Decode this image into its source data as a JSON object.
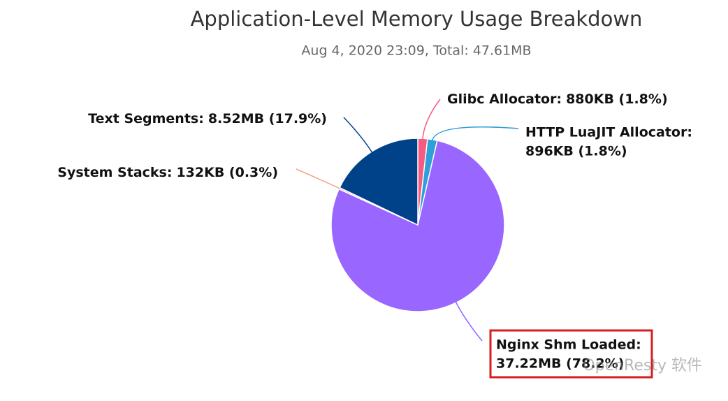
{
  "chart_data": {
    "type": "pie",
    "title": "Application-Level Memory Usage Breakdown",
    "subtitle": "Aug 4, 2020 23:09, Total: 47.61MB",
    "categories": [
      "Glibc Allocator:",
      "HTTP LuaJIT Allocator:",
      "Nginx Shm Loaded:",
      "System Stacks:",
      "Text Segments:"
    ],
    "values": [
      1.8,
      1.8,
      78.2,
      0.3,
      17.9
    ],
    "value_labels": [
      "880KB (1.8%)",
      "896KB (1.8%)",
      "37.22MB (78.2%)",
      "132KB (0.3%)",
      "8.52MB (17.9%)"
    ],
    "colors": [
      "#f45b7f",
      "#2f9fd8",
      "#9966ff",
      "#f2a68a",
      "#00428a"
    ],
    "watermark": "OpenResty 软件"
  }
}
